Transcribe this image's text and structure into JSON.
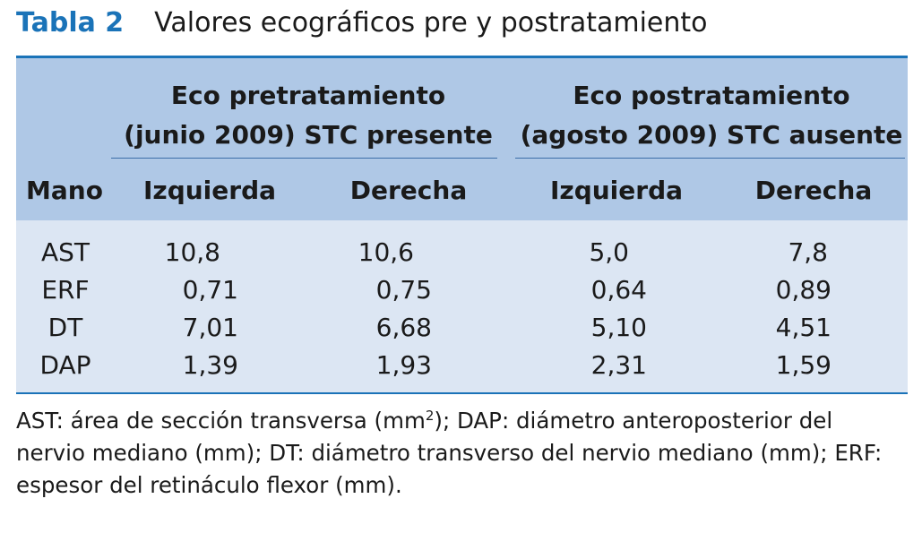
{
  "title": {
    "label": "Tabla 2",
    "text": "Valores ecográficos pre y postratamiento"
  },
  "table": {
    "groups": [
      {
        "line1": "Eco pretratamiento",
        "line2": "(junio 2009) STC presente"
      },
      {
        "line1": "Eco postratamiento",
        "line2": "(agosto 2009) STC ausente"
      }
    ],
    "columns": [
      "Mano",
      "Izquierda",
      "Derecha",
      "Izquierda",
      "Derecha"
    ],
    "rows": [
      {
        "label": "AST",
        "values": [
          "10,8",
          "10,6",
          "5,0",
          "7,8"
        ]
      },
      {
        "label": "ERF",
        "values": [
          "0,71",
          "0,75",
          "0,64",
          "0,89"
        ]
      },
      {
        "label": "DT",
        "values": [
          "7,01",
          "6,68",
          "5,10",
          "4,51"
        ]
      },
      {
        "label": "DAP",
        "values": [
          "1,39",
          "1,93",
          "2,31",
          "1,59"
        ]
      }
    ]
  },
  "footnote": {
    "part1": "AST: área de sección transversa (mm",
    "sup": "2",
    "part2": "); DAP: diámetro anteroposterior del nervio mediano (mm); DT: diámetro transverso del nervio mediano (mm); ERF: espesor del retináculo flexor (mm)."
  }
}
